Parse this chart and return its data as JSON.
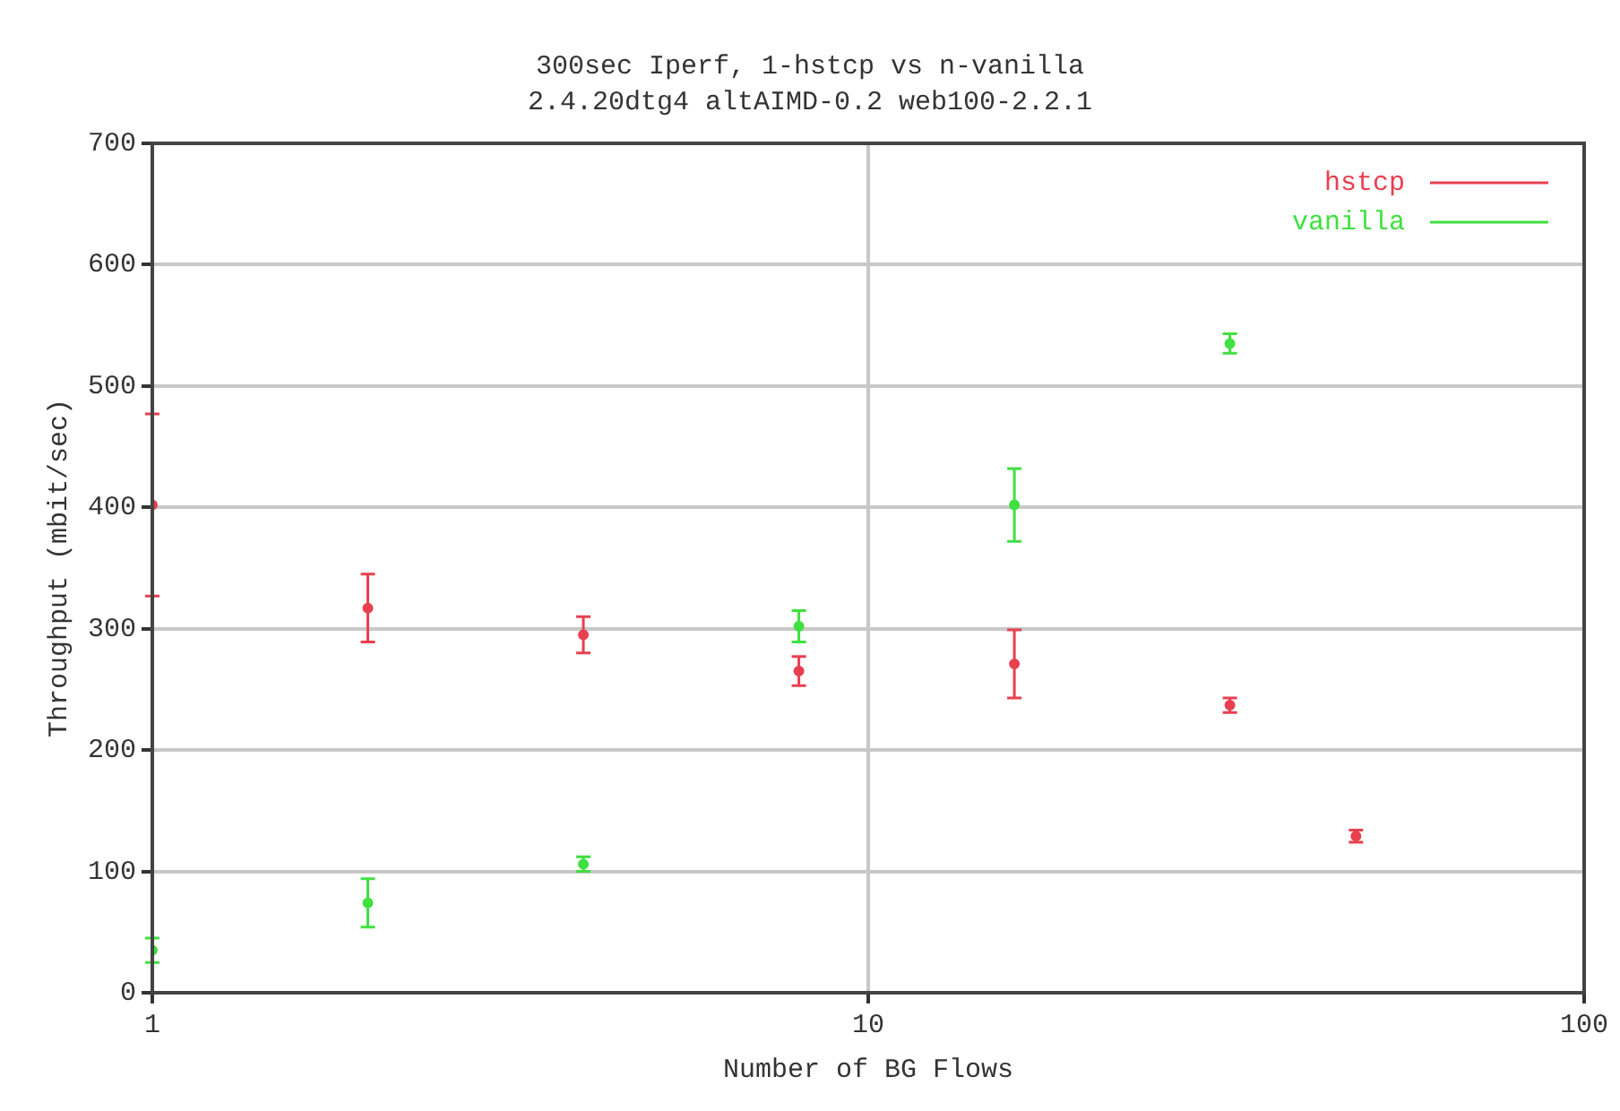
{
  "chart_data": {
    "type": "scatter",
    "title": "300sec Iperf, 1-hstcp vs n-vanilla",
    "subtitle": "2.4.20dtg4 altAIMD-0.2 web100-2.2.1",
    "xlabel": "Number of BG Flows",
    "ylabel": "Throughput (mbit/sec)",
    "log": "x",
    "xlim": [
      1,
      100
    ],
    "xticks": [
      1,
      10,
      100
    ],
    "ylim": [
      0,
      700
    ],
    "yticks": [
      0,
      100,
      200,
      300,
      400,
      500,
      600,
      700
    ],
    "grid": true,
    "legend": "top right",
    "marker": "circle",
    "series": [
      {
        "name": "hstcp",
        "color": "#e8404f",
        "x": [
          1,
          2,
          4,
          8,
          16,
          32,
          48
        ],
        "values": [
          402,
          317,
          295,
          265,
          271,
          237,
          129
        ],
        "errors": [
          75,
          28,
          15,
          12,
          28,
          6,
          5
        ]
      },
      {
        "name": "vanilla",
        "color": "#40e040",
        "x": [
          1,
          2,
          4,
          8,
          16,
          32
        ],
        "values": [
          35,
          74,
          106,
          302,
          402,
          535
        ],
        "errors": [
          10,
          20,
          6,
          13,
          30,
          8
        ]
      }
    ]
  }
}
